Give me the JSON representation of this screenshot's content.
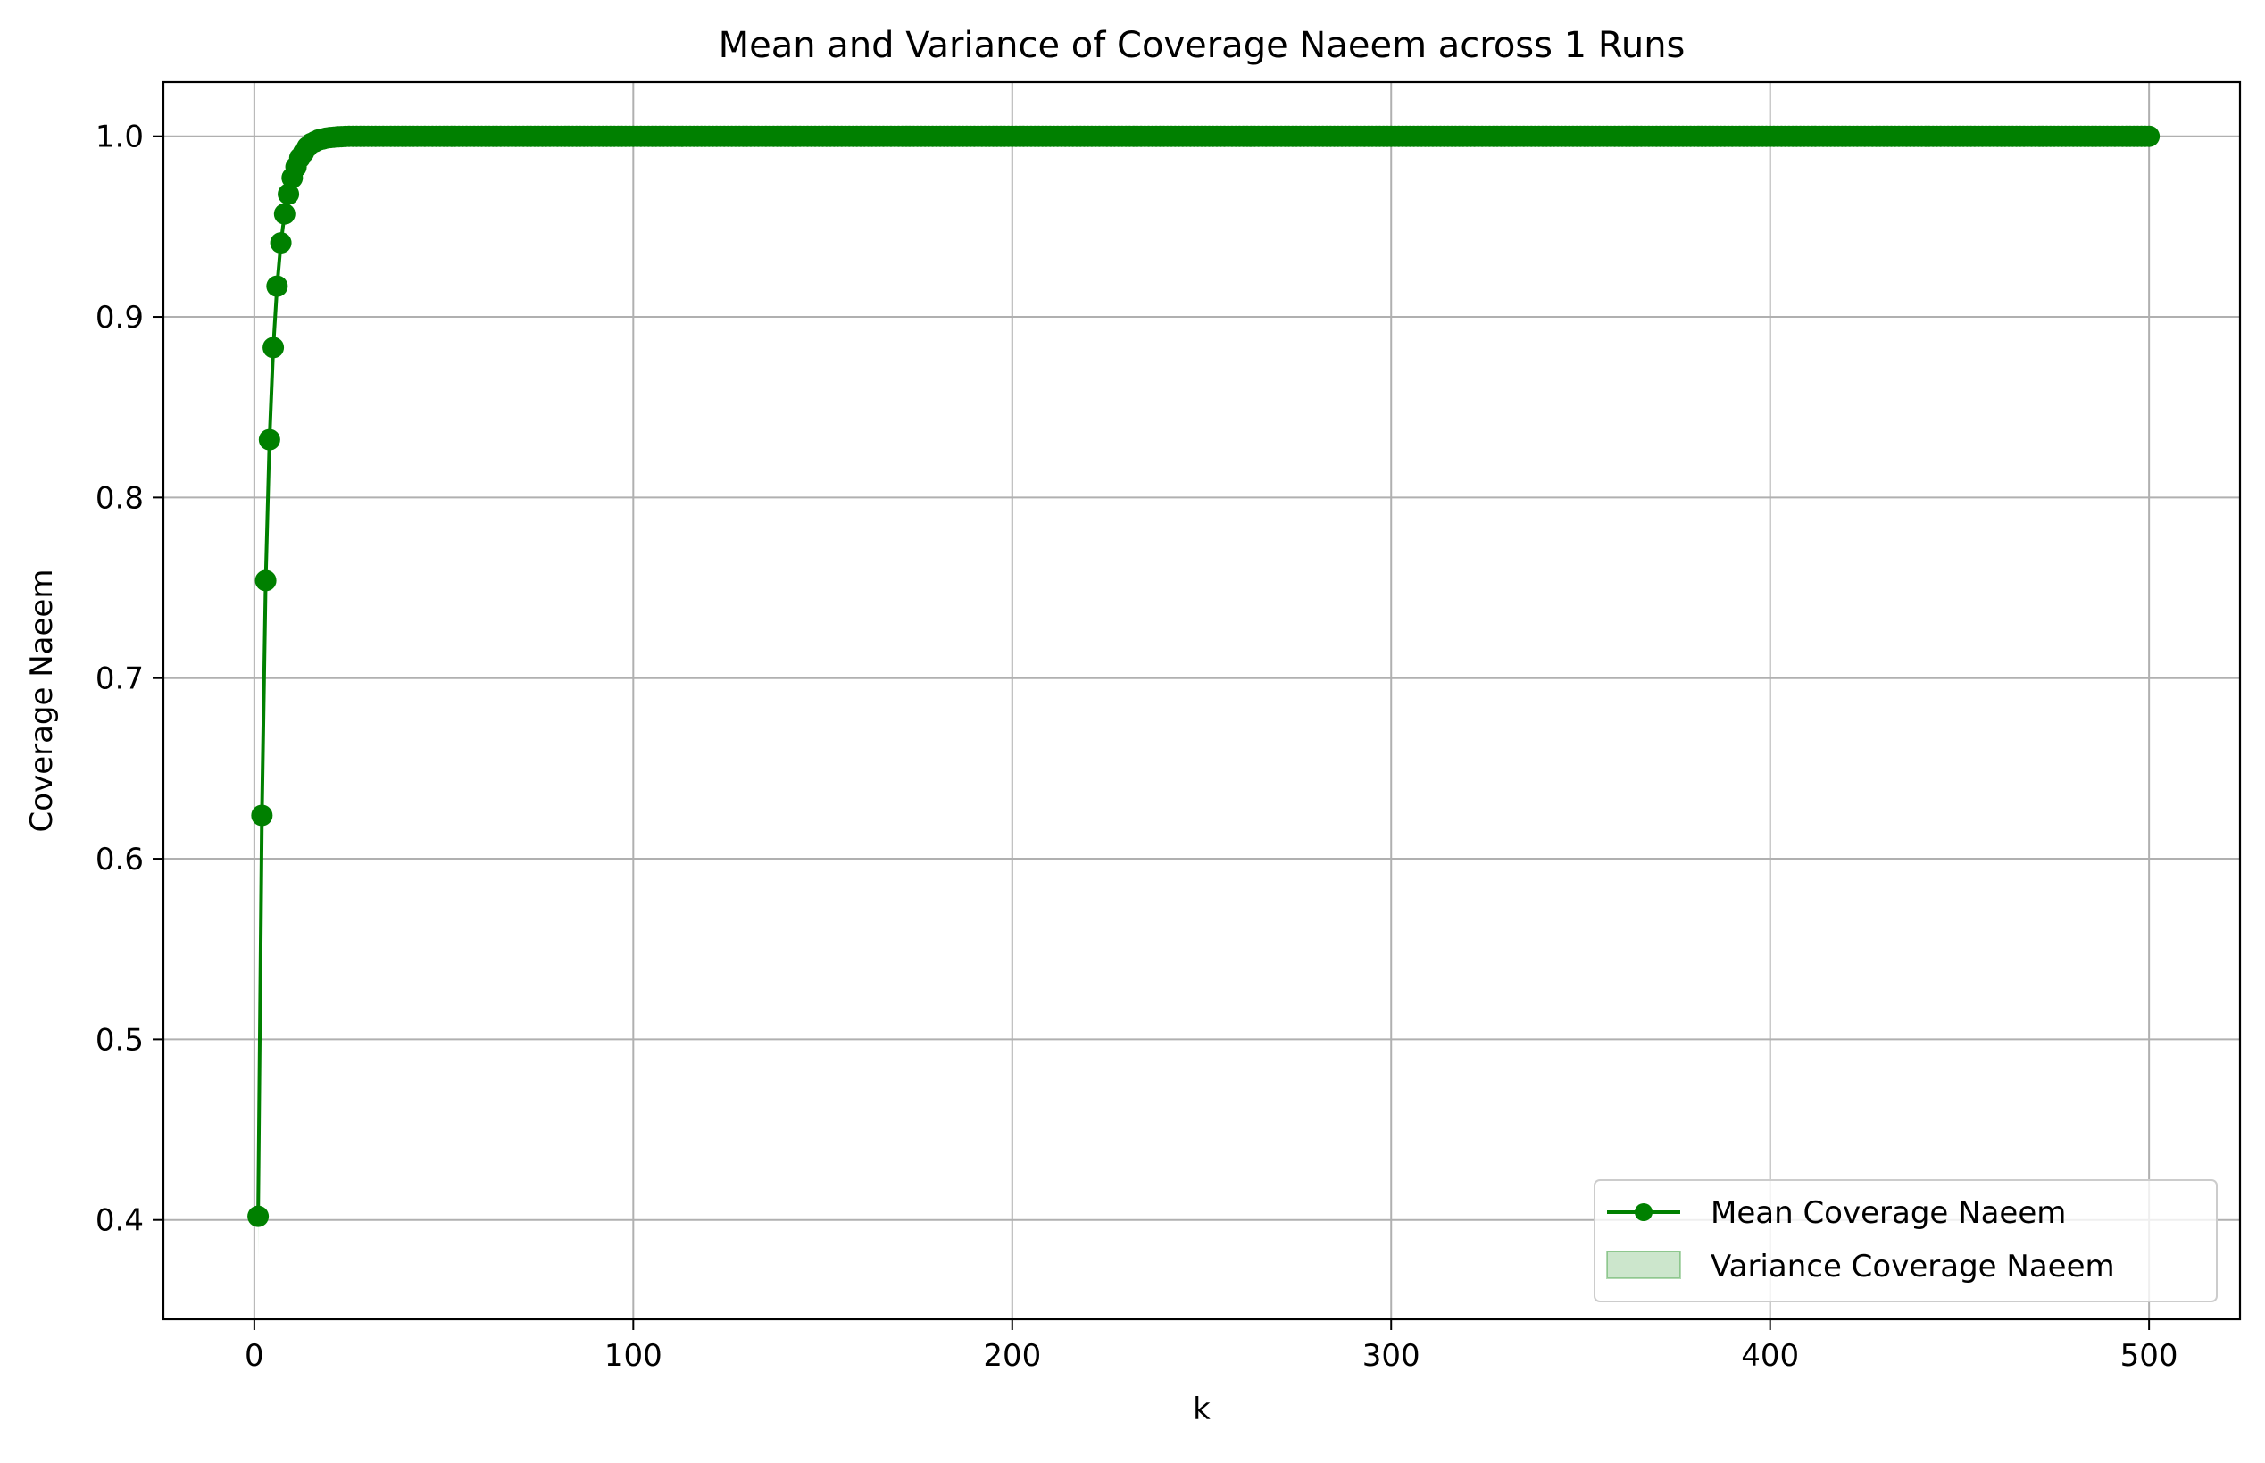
{
  "chart_data": {
    "type": "line",
    "title": "Mean and Variance of Coverage Naeem across 1 Runs",
    "xlabel": "k",
    "ylabel": "Coverage Naeem",
    "xlim": [
      -24,
      524
    ],
    "ylim": [
      0.345,
      1.03
    ],
    "xticks": [
      0,
      100,
      200,
      300,
      400,
      500
    ],
    "xtick_labels": [
      "0",
      "100",
      "200",
      "300",
      "400",
      "500"
    ],
    "yticks": [
      0.4,
      0.5,
      0.6,
      0.7,
      0.8,
      0.9,
      1.0
    ],
    "ytick_labels": [
      "0.4",
      "0.5",
      "0.6",
      "0.7",
      "0.8",
      "0.9",
      "1.0"
    ],
    "grid": true,
    "legend_position": "lower-right",
    "series": [
      {
        "name": "Mean Coverage Naeem",
        "style": "line-with-circle-markers",
        "color": "#008000",
        "x_start": 1,
        "x_end": 500,
        "x_step": 1,
        "points": [
          [
            1,
            0.402
          ],
          [
            2,
            0.624
          ],
          [
            3,
            0.754
          ],
          [
            4,
            0.832
          ],
          [
            5,
            0.883
          ],
          [
            6,
            0.917
          ],
          [
            7,
            0.941
          ],
          [
            8,
            0.957
          ],
          [
            9,
            0.968
          ],
          [
            10,
            0.977
          ],
          [
            11,
            0.983
          ],
          [
            12,
            0.988
          ],
          [
            13,
            0.991
          ],
          [
            14,
            0.994
          ],
          [
            15,
            0.996
          ],
          [
            16,
            0.997
          ],
          [
            17,
            0.998
          ],
          [
            18,
            0.9985
          ],
          [
            19,
            0.999
          ],
          [
            20,
            0.9993
          ],
          [
            21,
            0.9995
          ],
          [
            22,
            0.9997
          ],
          [
            23,
            0.9998
          ],
          [
            24,
            0.9999
          ],
          [
            25,
            1.0
          ]
        ],
        "plateau_value": 1.0
      },
      {
        "name": "Variance Coverage Naeem",
        "style": "filled-band",
        "color": "#008000",
        "alpha": 0.2,
        "band": [
          {
            "x": 1,
            "low": 0.376,
            "high": 0.428
          },
          {
            "x": 2,
            "low": 0.624,
            "high": 0.624
          }
        ]
      }
    ]
  }
}
